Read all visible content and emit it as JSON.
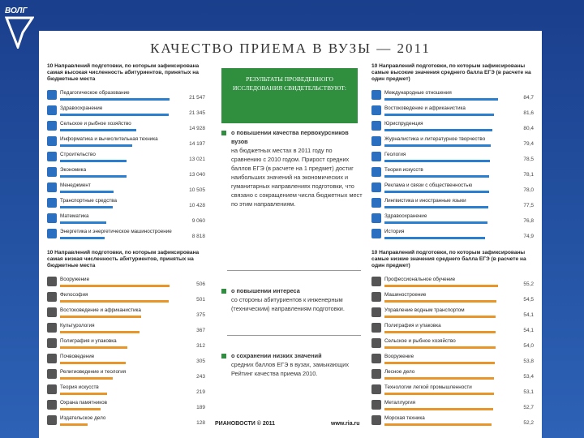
{
  "logo": "ВОЛГ",
  "title": "КАЧЕСТВО ПРИЕМА В ВУЗЫ — 2011",
  "panels": [
    {
      "heading": "10 Направлений подготовки, по которым зафиксирована самая высокая численность абитуриентов, принятых на бюджетные места",
      "color": "#2a7fd0",
      "items": [
        {
          "name": "Педагогическое образование",
          "value": {
            "value": 21547,
            "label": "21 547"
          }
        },
        {
          "name": "Здравоохранение",
          "value": {
            "value": 21345,
            "label": "21 345"
          }
        },
        {
          "name": "Сельское и рыбное хозяйство",
          "value": {
            "value": 14928,
            "label": "14 928"
          }
        },
        {
          "name": "Информатика и вычислительная техника",
          "value": {
            "value": 14197,
            "label": "14 197"
          }
        },
        {
          "name": "Строительство",
          "value": {
            "value": 13021,
            "label": "13 021"
          }
        },
        {
          "name": "Экономика",
          "value": {
            "value": 13040,
            "label": "13 040"
          }
        },
        {
          "name": "Менеджмент",
          "value": {
            "value": 10505,
            "label": "10 505"
          }
        },
        {
          "name": "Транспортные средства",
          "value": {
            "value": 10428,
            "label": "10 428"
          }
        },
        {
          "name": "Математика",
          "value": {
            "value": 9060,
            "label": "9 060"
          }
        },
        {
          "name": "Энергетика и энергетическое машиностроение",
          "value": {
            "value": 8818,
            "label": "8 818"
          }
        }
      ]
    },
    {
      "heading": "10 Направлений подготовки, по которым зафиксирована самая низкая численность абитуриентов, принятых на бюджетные места",
      "color": "#e8962a",
      "items": [
        {
          "name": "Вооружение",
          "value": 506
        },
        {
          "name": "Философия",
          "value": 501
        },
        {
          "name": "Востоковедение и африканистика",
          "value": 375
        },
        {
          "name": "Культурология",
          "value": 367
        },
        {
          "name": "Полиграфия и упаковка",
          "value": 312
        },
        {
          "name": "Почвоведение",
          "value": 305
        },
        {
          "name": "Религиоведение и теология",
          "value": 243
        },
        {
          "name": "Теория искусств",
          "value": 219
        },
        {
          "name": "Охрана памятников",
          "value": 189
        },
        {
          "name": "Издательское дело",
          "value": 128
        }
      ]
    },
    {
      "heading": "10 Направлений подготовки, по которым зафиксированы самые высокие значения среднего балла ЕГЭ (в расчете на один предмет)",
      "color": "#2a7fd0",
      "items": [
        {
          "name": "Международные отношения",
          "value": {
            "value": 84.7,
            "label": "84,7"
          }
        },
        {
          "name": "Востоковедение и африканистика",
          "value": {
            "value": 81.6,
            "label": "81,6"
          }
        },
        {
          "name": "Юриспруденция",
          "value": {
            "value": 80.4,
            "label": "80,4"
          }
        },
        {
          "name": "Журналистика и литературное творчество",
          "value": {
            "value": 79.4,
            "label": "79,4"
          }
        },
        {
          "name": "Геология",
          "value": {
            "value": 78.5,
            "label": "78,5"
          }
        },
        {
          "name": "Теория искусств",
          "value": {
            "value": 78.1,
            "label": "78,1"
          }
        },
        {
          "name": "Реклама и связи с общественностью",
          "value": {
            "value": 78.0,
            "label": "78,0"
          }
        },
        {
          "name": "Лингвистика и иностранные языки",
          "value": {
            "value": 77.5,
            "label": "77,5"
          }
        },
        {
          "name": "Здравоохранение",
          "value": {
            "value": 76.8,
            "label": "76,8"
          }
        },
        {
          "name": "История",
          "value": {
            "value": 74.9,
            "label": "74,9"
          }
        }
      ]
    },
    {
      "heading": "10 Направлений подготовки, по которым зафиксированы самые низкие значения среднего балла ЕГЭ (в расчете на один предмет)",
      "color": "#e8962a",
      "items": [
        {
          "name": "Профессиональное обучение",
          "value": {
            "value": 55.2,
            "label": "55,2"
          }
        },
        {
          "name": "Машиностроение",
          "value": {
            "value": 54.5,
            "label": "54,5"
          }
        },
        {
          "name": "Управление водным транспортом",
          "value": {
            "value": 54.1,
            "label": "54,1"
          }
        },
        {
          "name": "Полиграфия и упаковка",
          "value": {
            "value": 54.1,
            "label": "54,1"
          }
        },
        {
          "name": "Сельское и рыбное хозяйство",
          "value": {
            "value": 54.0,
            "label": "54,0"
          }
        },
        {
          "name": "Вооружение",
          "value": {
            "value": 53.8,
            "label": "53,8"
          }
        },
        {
          "name": "Лесное дело",
          "value": {
            "value": 53.4,
            "label": "53,4"
          }
        },
        {
          "name": "Технологии легкой промышленности",
          "value": {
            "value": 53.1,
            "label": "53,1"
          }
        },
        {
          "name": "Металлургия",
          "value": {
            "value": 52.7,
            "label": "52,7"
          }
        },
        {
          "name": "Морская техника",
          "value": {
            "value": 52.2,
            "label": "52,2"
          }
        }
      ]
    }
  ],
  "results": {
    "banner": "РЕЗУЛЬТАТЫ ПРОВЕДЕННОГО ИССЛЕДОВАНИЯ СВИДЕТЕЛЬСТВУЮТ:",
    "blocks": [
      {
        "lead": "о повышении качества первокурсников вузов",
        "text": "на бюджетных местах в 2011 году по сравнению с 2010 годом. Прирост средних баллов ЕГЭ (в расчете на 1 предмет) достиг наибольших значений на экономических и гуманитарных направлениях подготовки, что связано с сокращением числа бюджетных мест по этим направлениям."
      },
      {
        "lead": "о повышении интереса",
        "text": "со стороны абитуриентов к инженерным (техническим) направлениям подготовки."
      },
      {
        "lead": "о сохранении низких значений",
        "text": "средних баллов ЕГЭ в вузах, замыкающих Рейтинг качества приема 2010."
      }
    ]
  },
  "footer": {
    "source": "РИАНОВОСТИ © 2011",
    "url": "www.ria.ru"
  }
}
